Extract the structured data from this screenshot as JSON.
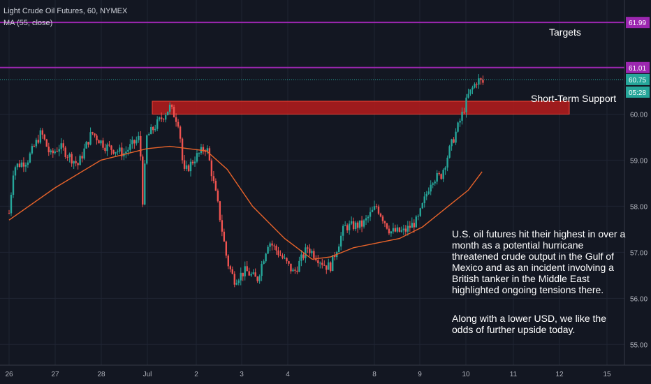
{
  "header": {
    "title": "Light Crude Oil Futures, 60, NYMEX",
    "indicator": "MA (55, close)"
  },
  "annotations": {
    "targets_label": "Targets",
    "support_label": "Short-Term Support",
    "commentary_p1": "U.S. oil futures hit their highest in over a month as a potential hurricane threatened crude output in the Gulf of Mexico and as an incident involving a British tanker in the Middle East highlighted ongoing tensions there.",
    "commentary_p2": "Along with a lower USD, we like the odds of further upside today."
  },
  "price_tags": {
    "target_1": "61.99",
    "target_2": "61.01",
    "last_price": "60.75",
    "countdown": "05:28"
  },
  "colors": {
    "background": "#131722",
    "up": "#26a69a",
    "down": "#ef5350",
    "ma": "#e8632a",
    "target": "#9c27b0",
    "support_fill": "#b71c1c",
    "last_price": "#26a69a"
  },
  "chart_data": {
    "type": "candlestick",
    "title": "Light Crude Oil Futures, 60, NYMEX",
    "y_ticks": [
      55.0,
      56.0,
      57.0,
      58.0,
      59.0,
      60.0
    ],
    "ylim": [
      54.55,
      62.25
    ],
    "x_ticks": [
      "26",
      "27",
      "28",
      "Jul",
      "2",
      "3",
      "4",
      "8",
      "9",
      "10",
      "11",
      "12",
      "15"
    ],
    "grid": true,
    "horizontal_levels": [
      {
        "label": "Target",
        "value": 61.99
      },
      {
        "label": "Target",
        "value": 61.01
      }
    ],
    "support_zone": {
      "label": "Short-Term Support",
      "low": 60.0,
      "high": 60.28
    },
    "last_price": 60.75,
    "anchors": [
      {
        "d": 0,
        "p": 57.85
      },
      {
        "d": 0.1,
        "p": 58.85
      },
      {
        "d": 0.4,
        "p": 59.0
      },
      {
        "d": 0.7,
        "p": 59.6
      },
      {
        "d": 0.9,
        "p": 59.1
      },
      {
        "d": 1.1,
        "p": 59.3
      },
      {
        "d": 1.5,
        "p": 58.9
      },
      {
        "d": 1.8,
        "p": 59.6
      },
      {
        "d": 2.1,
        "p": 59.3
      },
      {
        "d": 2.5,
        "p": 59.15
      },
      {
        "d": 2.85,
        "p": 59.5
      },
      {
        "d": 2.9,
        "p": 58.0
      },
      {
        "d": 3.0,
        "p": 59.5
      },
      {
        "d": 3.5,
        "p": 60.15
      },
      {
        "d": 3.7,
        "p": 59.8
      },
      {
        "d": 3.8,
        "p": 58.7
      },
      {
        "d": 4.05,
        "p": 59.05
      },
      {
        "d": 4.3,
        "p": 59.3
      },
      {
        "d": 4.55,
        "p": 58.0
      },
      {
        "d": 4.75,
        "p": 56.8
      },
      {
        "d": 4.9,
        "p": 56.4
      },
      {
        "d": 5.15,
        "p": 56.6
      },
      {
        "d": 5.4,
        "p": 56.4
      },
      {
        "d": 5.65,
        "p": 57.25
      },
      {
        "d": 5.9,
        "p": 56.95
      },
      {
        "d": 6.2,
        "p": 56.55
      },
      {
        "d": 6.5,
        "p": 57.1
      },
      {
        "d": 6.9,
        "p": 56.7
      },
      {
        "d": 7.0,
        "p": 56.7
      },
      {
        "d": 7.3,
        "p": 57.55
      },
      {
        "d": 7.7,
        "p": 57.6
      },
      {
        "d": 8.0,
        "p": 58.0
      },
      {
        "d": 8.3,
        "p": 57.45
      },
      {
        "d": 8.6,
        "p": 57.45
      },
      {
        "d": 8.9,
        "p": 57.7
      },
      {
        "d": 9.2,
        "p": 58.6
      },
      {
        "d": 9.4,
        "p": 58.65
      },
      {
        "d": 9.6,
        "p": 59.25
      },
      {
        "d": 9.8,
        "p": 59.8
      },
      {
        "d": 10.0,
        "p": 60.4
      },
      {
        "d": 10.2,
        "p": 60.75
      },
      {
        "d": 10.3,
        "p": 60.68
      }
    ],
    "ma_points": [
      {
        "d": 0,
        "p": 57.7
      },
      {
        "d": 1.0,
        "p": 58.4
      },
      {
        "d": 2.0,
        "p": 59.0
      },
      {
        "d": 3.0,
        "p": 59.25
      },
      {
        "d": 3.5,
        "p": 59.3
      },
      {
        "d": 4.3,
        "p": 59.2
      },
      {
        "d": 4.75,
        "p": 58.8
      },
      {
        "d": 5.3,
        "p": 58.0
      },
      {
        "d": 6.0,
        "p": 57.3
      },
      {
        "d": 6.6,
        "p": 56.85
      },
      {
        "d": 7.0,
        "p": 56.9
      },
      {
        "d": 7.5,
        "p": 57.1
      },
      {
        "d": 8.0,
        "p": 57.2
      },
      {
        "d": 8.5,
        "p": 57.3
      },
      {
        "d": 9.0,
        "p": 57.55
      },
      {
        "d": 9.5,
        "p": 57.95
      },
      {
        "d": 10.0,
        "p": 58.35
      },
      {
        "d": 10.3,
        "p": 58.75
      }
    ],
    "bars_per_day": 22,
    "total_days": 10.3
  }
}
